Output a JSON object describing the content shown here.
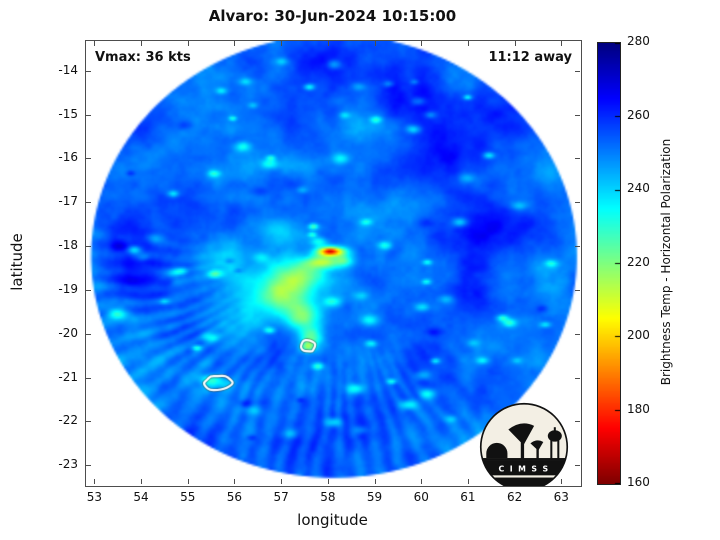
{
  "title": "Alvaro: 30-Jun-2024 10:15:00",
  "annotations": {
    "vmax": "Vmax: 36 kts",
    "eta": "11:12 away"
  },
  "axes": {
    "xlabel": "longitude",
    "ylabel": "latitude",
    "x_ticks": [
      53,
      54,
      55,
      56,
      57,
      58,
      59,
      60,
      61,
      62,
      63
    ],
    "y_ticks": [
      -14,
      -15,
      -16,
      -17,
      -18,
      -19,
      -20,
      -21,
      -22,
      -23
    ],
    "xlim": [
      52.8,
      63.4
    ],
    "ylim": [
      -23.45,
      -13.3
    ]
  },
  "colorbar": {
    "label": "Brightness Temp - Horizontal Polarization",
    "ticks": [
      160,
      180,
      200,
      220,
      240,
      260,
      280
    ],
    "min": 160,
    "max": 280
  },
  "logo": {
    "text": "C I M S S"
  },
  "chart_data": {
    "type": "heatmap",
    "title": "Alvaro: 30-Jun-2024 10:15:00",
    "storm_name": "Alvaro",
    "timestamp": "30-Jun-2024 10:15:00",
    "vmax_kts": 36,
    "pass_offset": "11:12 away",
    "variable": "Brightness Temp - Horizontal Polarization",
    "units": "K",
    "value_range": [
      160,
      280
    ],
    "swath": {
      "center_lon": 58.11,
      "center_lat": -18.21,
      "rx_deg": 5.2,
      "ry_deg": 5.05
    },
    "texture": {
      "base": 252,
      "fbm1_amp": 9,
      "fbm1_scale": 0.8,
      "fbm2_amp": 4,
      "fbm2_scale": 3.2,
      "seed": 42
    },
    "spokes": {
      "amp": 2.6,
      "min_angle": -195,
      "max_angle": -40,
      "count": 70
    },
    "speckles": {
      "count": 85
    },
    "blobs": [
      [
        58.05,
        -18.1,
        0.3,
        0.11,
        -62
      ],
      [
        58.02,
        -18.09,
        0.13,
        0.06,
        -18
      ],
      [
        57.93,
        -18.34,
        0.4,
        0.15,
        -32
      ],
      [
        58.33,
        -18.3,
        0.18,
        0.13,
        -16
      ],
      [
        57.45,
        -18.6,
        0.55,
        0.35,
        -28
      ],
      [
        57.1,
        -19.1,
        0.55,
        0.4,
        -28
      ],
      [
        57.45,
        -19.6,
        0.35,
        0.3,
        -28
      ],
      [
        57.62,
        -20.05,
        0.25,
        0.22,
        -26
      ],
      [
        57.55,
        -20.28,
        0.15,
        0.12,
        -28
      ],
      [
        56.55,
        -18.85,
        0.95,
        0.75,
        -13
      ],
      [
        56.0,
        -19.85,
        0.75,
        0.55,
        -9
      ],
      [
        55.75,
        -18.05,
        0.75,
        0.55,
        -9
      ],
      [
        56.9,
        -17.6,
        0.55,
        0.3,
        -11
      ],
      [
        55.62,
        -21.08,
        0.24,
        0.14,
        -16
      ],
      [
        57.2,
        -16.1,
        0.85,
        0.28,
        -7
      ],
      [
        58.6,
        -15.25,
        0.95,
        0.3,
        -6
      ],
      [
        55.6,
        -16.35,
        0.55,
        0.32,
        -7
      ],
      [
        59.8,
        -17.0,
        0.6,
        0.4,
        -5
      ],
      [
        60.6,
        -15.9,
        1.0,
        0.9,
        9
      ],
      [
        61.6,
        -17.6,
        0.9,
        0.8,
        8
      ],
      [
        59.6,
        -14.6,
        0.9,
        0.6,
        7
      ],
      [
        61.0,
        -19.2,
        0.9,
        0.8,
        6
      ],
      [
        62.0,
        -15.0,
        0.8,
        0.8,
        8
      ],
      [
        59.0,
        -21.6,
        0.9,
        0.7,
        5
      ],
      [
        53.8,
        -18.5,
        0.7,
        0.9,
        5
      ],
      [
        58.2,
        -13.9,
        0.8,
        0.5,
        7
      ]
    ],
    "contours": [
      {
        "lon": 57.55,
        "lat": -20.26,
        "rx": 0.17,
        "ry": 0.13
      },
      {
        "lon": 55.62,
        "lat": -21.1,
        "rx": 0.3,
        "ry": 0.17
      }
    ]
  }
}
